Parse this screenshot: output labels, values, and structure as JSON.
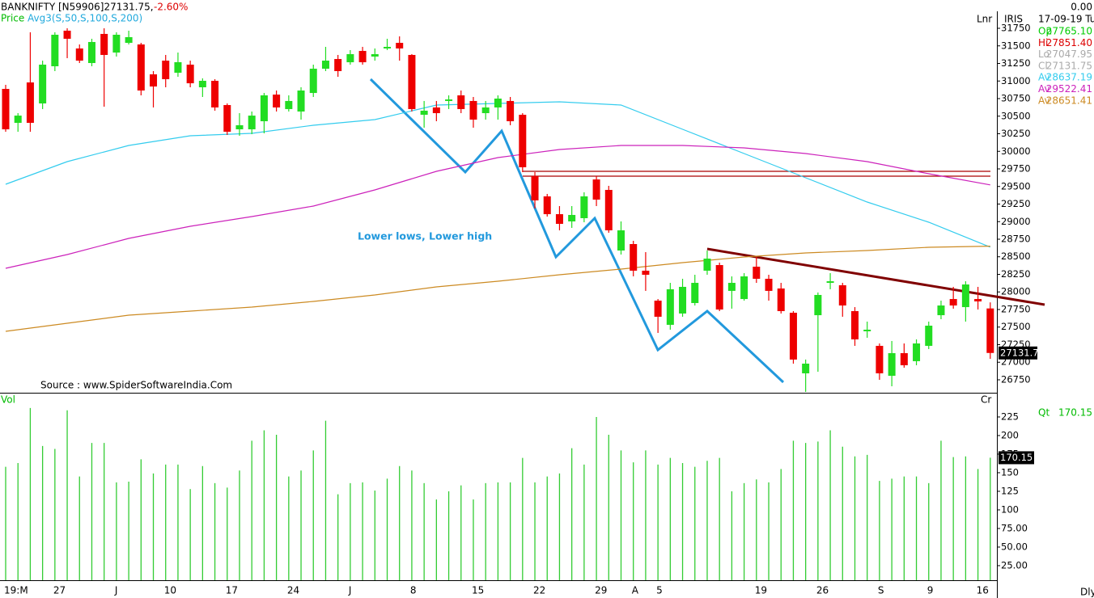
{
  "chart_data": [
    {
      "type": "candlestick",
      "title": "BANKNIFTY [N59906]27131.75,",
      "change": {
        "value": -2.6,
        "label": "-2.60%"
      },
      "legend": [
        "Price",
        "Avg3(S,50,S,100,S,200)"
      ],
      "scale_label": "Lnr",
      "source": "Source : www.SpiderSoftwareIndia.Com",
      "annotation": "Lower lows, Lower high",
      "categories": [
        "19:M",
        null,
        null,
        null,
        "27",
        null,
        null,
        null,
        null,
        "J",
        null,
        null,
        null,
        "10",
        null,
        null,
        null,
        null,
        "17",
        null,
        null,
        null,
        null,
        "24",
        null,
        null,
        null,
        null,
        "J",
        null,
        null,
        null,
        null,
        "8",
        null,
        null,
        null,
        null,
        "15",
        null,
        null,
        null,
        null,
        "22",
        null,
        null,
        null,
        null,
        "29",
        null,
        null,
        "A",
        null,
        "5",
        null,
        null,
        null,
        null,
        null,
        null,
        null,
        "19",
        null,
        null,
        null,
        null,
        "26",
        null,
        null,
        null,
        null,
        "S",
        null,
        null,
        null,
        "9",
        null,
        null,
        null,
        "16",
        null
      ],
      "open": [
        30888,
        30405,
        30980,
        30681,
        31210,
        31716,
        31463,
        31256,
        31670,
        31405,
        31543,
        31520,
        31095,
        31290,
        31118,
        31233,
        30911,
        31003,
        30658,
        30313,
        30313,
        30428,
        30807,
        30601,
        30566,
        30830,
        31175,
        31313,
        31267,
        31428,
        31348,
        31463,
        31543,
        31371,
        30520,
        30624,
        30716,
        30796,
        30716,
        30543,
        30624,
        30716,
        30520,
        29646,
        29359,
        29106,
        29003,
        29049,
        29600,
        29451,
        28589,
        28681,
        28302,
        27876,
        27532,
        27693,
        27842,
        28302,
        28382,
        28015,
        27899,
        28359,
        28187,
        28049,
        27704,
        26842,
        27669,
        28129,
        28095,
        27727,
        27440,
        27233,
        26807,
        27129,
        27015,
        27233,
        27669,
        27899,
        27784,
        27899,
        27765.1
      ],
      "high": [
        30946,
        30543,
        31693,
        31290,
        31693,
        31750,
        31520,
        31601,
        31750,
        31693,
        31716,
        31543,
        31141,
        31371,
        31405,
        31290,
        31038,
        31026,
        30681,
        30543,
        30566,
        30830,
        30865,
        30796,
        30911,
        31233,
        31486,
        31371,
        31440,
        31486,
        31463,
        31601,
        31635,
        31382,
        30716,
        30716,
        30796,
        30865,
        30773,
        30716,
        30796,
        30773,
        30543,
        29704,
        29394,
        29221,
        29221,
        29417,
        29646,
        29509,
        29003,
        28727,
        28566,
        27899,
        28129,
        28187,
        28244,
        28589,
        28417,
        28221,
        28267,
        28497,
        28244,
        28129,
        27727,
        27038,
        27992,
        28267,
        28129,
        27784,
        27578,
        27267,
        27302,
        27267,
        27325,
        27578,
        27876,
        28072,
        28152,
        28072,
        27851.4
      ],
      "low": [
        30278,
        30278,
        30278,
        30601,
        31141,
        31325,
        31256,
        31210,
        30635,
        31348,
        31520,
        30796,
        30624,
        30911,
        31060,
        30911,
        30773,
        30578,
        30233,
        30221,
        30244,
        30256,
        30566,
        30566,
        30451,
        30773,
        31141,
        31060,
        31233,
        31233,
        31290,
        31440,
        31290,
        30566,
        30336,
        30428,
        30601,
        30543,
        30336,
        30451,
        30451,
        30371,
        29704,
        29187,
        29072,
        28876,
        28911,
        28991,
        29221,
        28842,
        28532,
        28222,
        28015,
        27417,
        27463,
        27647,
        27807,
        28244,
        27727,
        27762,
        27876,
        28129,
        27876,
        27693,
        26980,
        26578,
        26865,
        28038,
        27647,
        27233,
        27348,
        26750,
        26658,
        26922,
        26957,
        27187,
        27612,
        27762,
        27578,
        27750,
        27047.95
      ],
      "close": [
        30313,
        30508,
        30405,
        31233,
        31658,
        31601,
        31290,
        31555,
        31371,
        31658,
        31624,
        30865,
        30922,
        31026,
        31268,
        30968,
        31003,
        30624,
        30278,
        30371,
        30508,
        30796,
        30624,
        30716,
        30865,
        31175,
        31290,
        31141,
        31382,
        31267,
        31382,
        31486,
        31463,
        30601,
        30578,
        30543,
        30738,
        30601,
        30451,
        30624,
        30750,
        30428,
        29773,
        29302,
        29106,
        28968,
        29095,
        29359,
        29313,
        28876,
        28876,
        28302,
        28244,
        27647,
        28038,
        28072,
        28129,
        28474,
        27750,
        28129,
        28221,
        28187,
        28015,
        27727,
        27038,
        26980,
        27957,
        28152,
        27807,
        27325,
        27463,
        26842,
        27129,
        26957,
        27267,
        27520,
        27807,
        27807,
        28106,
        27865,
        27131.75
      ],
      "up_color": "#22dd22",
      "down_color": "#ee0000",
      "series": [
        {
          "color": "#33ccee",
          "x": [
            0,
            5,
            10,
            15,
            20,
            25,
            30,
            35,
            40,
            45,
            50,
            55,
            60,
            65,
            70,
            75,
            80
          ],
          "values": [
            29532,
            29854,
            30083,
            30221,
            30256,
            30371,
            30451,
            30658,
            30681,
            30704,
            30658,
            30313,
            29969,
            29624,
            29279,
            28991,
            28637.19
          ]
        },
        {
          "color": "#cc22bb",
          "x": [
            0,
            5,
            10,
            15,
            20,
            25,
            30,
            35,
            40,
            45,
            50,
            55,
            60,
            65,
            70,
            75,
            80
          ],
          "values": [
            28336,
            28532,
            28762,
            28934,
            29072,
            29221,
            29451,
            29716,
            29911,
            30026,
            30083,
            30083,
            30049,
            29969,
            29854,
            29681,
            29522.41
          ]
        },
        {
          "color": "#cc8a22",
          "x": [
            0,
            5,
            10,
            15,
            20,
            25,
            30,
            35,
            40,
            45,
            50,
            55,
            60,
            65,
            70,
            75,
            80
          ],
          "values": [
            27440,
            27555,
            27670,
            27727,
            27784,
            27865,
            27957,
            28072,
            28152,
            28244,
            28325,
            28417,
            28497,
            28555,
            28589,
            28635,
            28651.41
          ]
        }
      ],
      "ylim": [
        26566,
        31980
      ],
      "yticks": [
        31750,
        31500,
        31250,
        31000,
        30750,
        30500,
        30250,
        30000,
        29750,
        29500,
        29250,
        29000,
        28750,
        28500,
        28250,
        28000,
        27750,
        27500,
        27250,
        27000,
        26750
      ],
      "last_marker": {
        "value": 27131.75,
        "label": "27131.7"
      },
      "info_panel": {
        "title": "IRIS",
        "top_value": {
          "value": 0,
          "label": "0.00"
        },
        "date": "17-09-19 Tu",
        "rows": [
          {
            "label": "Op",
            "value": 27765.1,
            "value_label": "27765.10",
            "color": "#00cc00"
          },
          {
            "label": "Hi",
            "value": 27851.4,
            "value_label": "27851.40",
            "color": "#dd0000"
          },
          {
            "label": "Lo",
            "value": 27047.95,
            "value_label": "27047.95",
            "color": "#aaaaaa"
          },
          {
            "label": "Cl",
            "value": 27131.75,
            "value_label": "27131.75",
            "color": "#aaaaaa"
          },
          {
            "label": "Av",
            "value": 28637.19,
            "value_label": "28637.19",
            "color": "#33ccee"
          },
          {
            "label": "Av",
            "value": 29522.41,
            "value_label": "29522.41",
            "color": "#cc22bb"
          },
          {
            "label": "Av",
            "value": 28651.41,
            "value_label": "28651.41",
            "color": "#cc8a22"
          }
        ]
      }
    },
    {
      "type": "bar",
      "title": "Vol",
      "scale_label": "Cr",
      "period_label": "Dly",
      "values": [
        158,
        163,
        237,
        186,
        182,
        234,
        145,
        190,
        190,
        137,
        138,
        168,
        149,
        161,
        161,
        128,
        159,
        136,
        130,
        153,
        193,
        207,
        201,
        145,
        153,
        180,
        220,
        121,
        136,
        137,
        126,
        142,
        159,
        153,
        136,
        114,
        125,
        133,
        114,
        136,
        137,
        137,
        170,
        137,
        145,
        149,
        183,
        161,
        225,
        201,
        180,
        164,
        180,
        161,
        170,
        163,
        158,
        166,
        170,
        125,
        136,
        141,
        137,
        155,
        193,
        190,
        192,
        207,
        185,
        172,
        174,
        139,
        142,
        145,
        145,
        136,
        193,
        171,
        172,
        155,
        170.15
      ],
      "color": "#33cc33",
      "ylim": [
        5.4,
        255.4
      ],
      "yticks": [
        225,
        200,
        175,
        150,
        125,
        100,
        {
          "value": 75,
          "label": "75.00"
        },
        {
          "value": 50,
          "label": "50.00"
        },
        {
          "value": 25,
          "label": "25.00"
        }
      ],
      "last_marker": {
        "value": 170.15,
        "label": "170.15"
      },
      "qt": {
        "label": "Qt",
        "value": 170.15,
        "value_label": "170.15"
      }
    }
  ]
}
